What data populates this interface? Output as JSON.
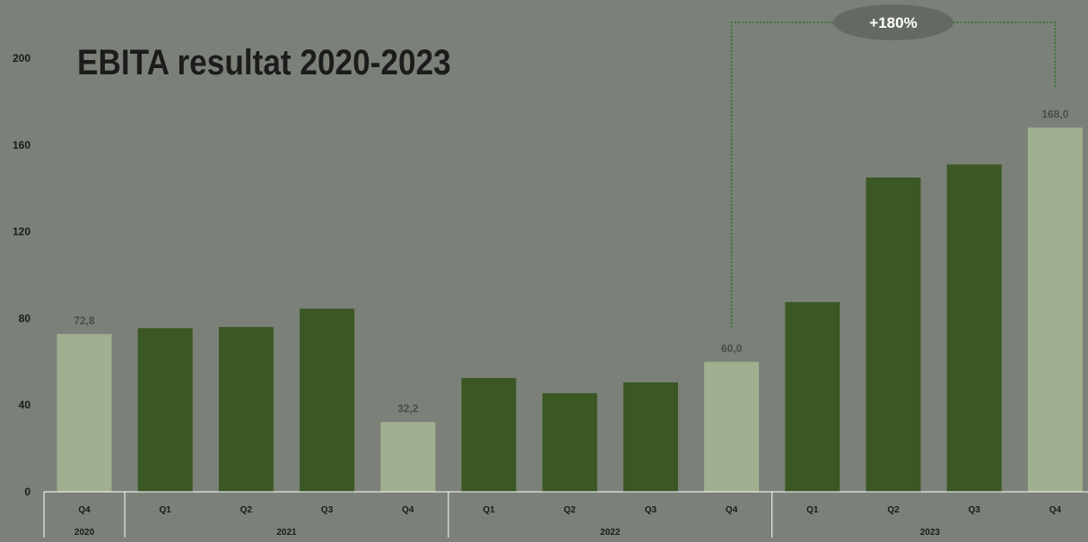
{
  "chart_data": {
    "type": "bar",
    "title": "EBITA resultat 2020-2023",
    "xlabel": "",
    "ylabel": "",
    "ylim": [
      0,
      220
    ],
    "yticks": [
      0,
      40,
      80,
      120,
      160,
      200
    ],
    "grid": false,
    "categories": [
      "Q4",
      "Q1",
      "Q2",
      "Q3",
      "Q4",
      "Q1",
      "Q2",
      "Q3",
      "Q4",
      "Q1",
      "Q2",
      "Q3",
      "Q4"
    ],
    "year_groups": [
      {
        "label": "2020",
        "count": 1
      },
      {
        "label": "2021",
        "count": 4
      },
      {
        "label": "2022",
        "count": 4
      },
      {
        "label": "2023",
        "count": 4
      }
    ],
    "values": [
      72.8,
      75.5,
      76,
      84.5,
      32.2,
      52.5,
      45.5,
      50.5,
      60.0,
      87.5,
      145,
      151,
      168.0
    ],
    "highlighted": [
      true,
      false,
      false,
      false,
      true,
      false,
      false,
      false,
      true,
      false,
      false,
      false,
      true
    ],
    "data_labels": [
      "72,8",
      "",
      "",
      "",
      "32,2",
      "",
      "",
      "",
      "60,0",
      "",
      "",
      "",
      "168,0"
    ],
    "colors": {
      "bar": "#3a5724",
      "highlight": "#a0af8f",
      "background": "#7b8179",
      "label": "#4a4d48",
      "bracket": "#2f6e2a",
      "badge": "#646a63"
    },
    "annotation": {
      "text": "+180%",
      "from_index": 8,
      "to_index": 12
    }
  }
}
